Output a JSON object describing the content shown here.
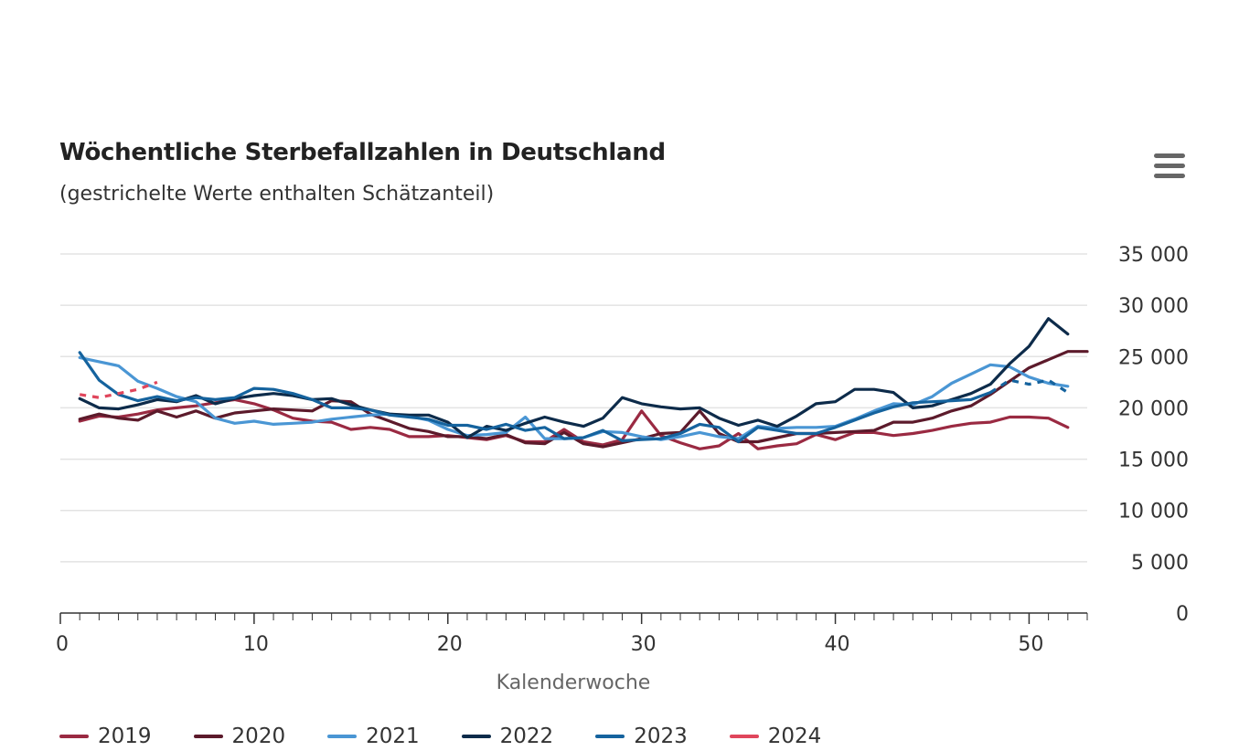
{
  "chart_data": {
    "type": "line",
    "title": "Wöchentliche Sterbefallzahlen in Deutschland",
    "subtitle": "(gestrichelte Werte enthalten Schätzanteil)",
    "xlabel": "Kalenderwoche",
    "ylabel": "",
    "xlim": [
      0,
      53
    ],
    "ylim": [
      0,
      35000
    ],
    "x_ticks": [
      0,
      10,
      20,
      30,
      40,
      50
    ],
    "x_tick_labels": [
      "0",
      "10",
      "20",
      "30",
      "40",
      "50"
    ],
    "y_ticks": [
      0,
      5000,
      10000,
      15000,
      20000,
      25000,
      30000,
      35000
    ],
    "y_tick_labels": [
      "0",
      "5 000",
      "10 000",
      "15 000",
      "20 000",
      "25 000",
      "30 000",
      "35 000"
    ],
    "y_axis_position": "right",
    "grid": true,
    "legend_position": "bottom-left",
    "series": [
      {
        "name": "2019",
        "color": "#9a2a42",
        "x": [
          1,
          2,
          3,
          4,
          5,
          6,
          7,
          8,
          9,
          10,
          11,
          12,
          13,
          14,
          15,
          16,
          17,
          18,
          19,
          20,
          21,
          22,
          23,
          24,
          25,
          26,
          27,
          28,
          29,
          30,
          31,
          32,
          33,
          34,
          35,
          36,
          37,
          38,
          39,
          40,
          41,
          42,
          43,
          44,
          45,
          46,
          47,
          48,
          49,
          50,
          51,
          52
        ],
        "values": [
          18700,
          19200,
          19100,
          19400,
          19800,
          20000,
          20200,
          20500,
          20800,
          20400,
          19800,
          19000,
          18700,
          18600,
          17900,
          18100,
          17900,
          17200,
          17200,
          17300,
          17100,
          16900,
          17300,
          16700,
          16700,
          17900,
          16700,
          16400,
          16900,
          19700,
          17300,
          16600,
          16000,
          16300,
          17500,
          16000,
          16300,
          16500,
          17400,
          16900,
          17600,
          17600,
          17300,
          17500,
          17800,
          18200,
          18500,
          18600,
          19100,
          19100,
          19000,
          18100
        ]
      },
      {
        "name": "2020",
        "color": "#5c1a2b",
        "x": [
          1,
          2,
          3,
          4,
          5,
          6,
          7,
          8,
          9,
          10,
          11,
          12,
          13,
          14,
          15,
          16,
          17,
          18,
          19,
          20,
          21,
          22,
          23,
          24,
          25,
          26,
          27,
          28,
          29,
          30,
          31,
          32,
          33,
          34,
          35,
          36,
          37,
          38,
          39,
          40,
          41,
          42,
          43,
          44,
          45,
          46,
          47,
          48,
          49,
          50,
          51,
          52,
          53
        ],
        "values": [
          18900,
          19400,
          19000,
          18800,
          19700,
          19100,
          19700,
          19000,
          19500,
          19700,
          19900,
          19800,
          19700,
          20700,
          20600,
          19400,
          18700,
          18000,
          17700,
          17200,
          17200,
          17000,
          17400,
          16600,
          16500,
          17600,
          16500,
          16200,
          16600,
          17000,
          17500,
          17600,
          19700,
          17500,
          16700,
          16700,
          17100,
          17500,
          17500,
          17600,
          17700,
          17800,
          18600,
          18600,
          19000,
          19700,
          20200,
          21300,
          22600,
          23900,
          24700,
          25500,
          25500
        ]
      },
      {
        "name": "2021",
        "color": "#4a96d4",
        "x": [
          1,
          2,
          3,
          4,
          5,
          6,
          7,
          8,
          9,
          10,
          11,
          12,
          13,
          14,
          15,
          16,
          17,
          18,
          19,
          20,
          21,
          22,
          23,
          24,
          25,
          26,
          27,
          28,
          29,
          30,
          31,
          32,
          33,
          34,
          35,
          36,
          37,
          38,
          39,
          40,
          41,
          42,
          43,
          44,
          45,
          46,
          47,
          48,
          49,
          50,
          51,
          52
        ],
        "values": [
          24900,
          24500,
          24100,
          22600,
          21900,
          21100,
          20600,
          19000,
          18500,
          18700,
          18400,
          18500,
          18600,
          18900,
          19100,
          19300,
          19400,
          19200,
          18800,
          17900,
          17300,
          17400,
          17600,
          19100,
          17000,
          17000,
          17100,
          17700,
          17600,
          17200,
          16900,
          17200,
          17600,
          17200,
          17000,
          18200,
          18000,
          18100,
          18100,
          18200,
          18900,
          19700,
          20400,
          20300,
          21100,
          22400,
          23300,
          24200,
          24000,
          23000,
          22400,
          22100
        ]
      },
      {
        "name": "2022",
        "color": "#0d2b4a",
        "x": [
          1,
          2,
          3,
          4,
          5,
          6,
          7,
          8,
          9,
          10,
          11,
          12,
          13,
          14,
          15,
          16,
          17,
          18,
          19,
          20,
          21,
          22,
          23,
          24,
          25,
          26,
          27,
          28,
          29,
          30,
          31,
          32,
          33,
          34,
          35,
          36,
          37,
          38,
          39,
          40,
          41,
          42,
          43,
          44,
          45,
          46,
          47,
          48,
          49,
          50,
          51,
          52
        ],
        "values": [
          20900,
          20000,
          19900,
          20300,
          20800,
          20600,
          21200,
          20400,
          20900,
          21200,
          21400,
          21200,
          20800,
          20900,
          20300,
          19800,
          19400,
          19300,
          19300,
          18600,
          17100,
          18200,
          17800,
          18500,
          19100,
          18600,
          18200,
          19000,
          21000,
          20400,
          20100,
          19900,
          20000,
          19000,
          18300,
          18800,
          18200,
          19200,
          20400,
          20600,
          21800,
          21800,
          21500,
          20000,
          20200,
          20800,
          21400,
          22300,
          24300,
          26000,
          28700,
          27200
        ]
      },
      {
        "name": "2023",
        "color": "#15639e",
        "x": [
          1,
          2,
          3,
          4,
          5,
          6,
          7,
          8,
          9,
          10,
          11,
          12,
          13,
          14,
          15,
          16,
          17,
          18,
          19,
          20,
          21,
          22,
          23,
          24,
          25,
          26,
          27,
          28,
          29,
          30,
          31,
          32,
          33,
          34,
          35,
          36,
          37,
          38,
          39,
          40,
          41,
          42,
          43,
          44,
          45,
          46,
          47,
          48
        ],
        "values": [
          25400,
          22700,
          21300,
          20700,
          21100,
          20700,
          21000,
          20800,
          21000,
          21900,
          21800,
          21400,
          20800,
          20000,
          20000,
          19800,
          19300,
          19100,
          18900,
          18300,
          18300,
          17900,
          18400,
          17800,
          18100,
          17000,
          17100,
          17800,
          16800,
          16900,
          17000,
          17500,
          18400,
          18100,
          16700,
          18100,
          17800,
          17500,
          17500,
          18100,
          18800,
          19500,
          20100,
          20500,
          20600,
          20700,
          20800,
          21500
        ]
      },
      {
        "name": "2023 (Schätzanteil)",
        "color": "#15639e",
        "dashed": true,
        "legend": false,
        "x": [
          48,
          49,
          50,
          51,
          52
        ],
        "values": [
          21500,
          22700,
          22300,
          22700,
          21500
        ]
      },
      {
        "name": "2024",
        "color": "#e0465c",
        "dashed": true,
        "x": [
          1,
          2,
          3,
          4,
          5
        ],
        "values": [
          21300,
          21000,
          21400,
          21800,
          22500
        ]
      }
    ]
  },
  "menu": {
    "icon": "hamburger-menu-icon"
  }
}
